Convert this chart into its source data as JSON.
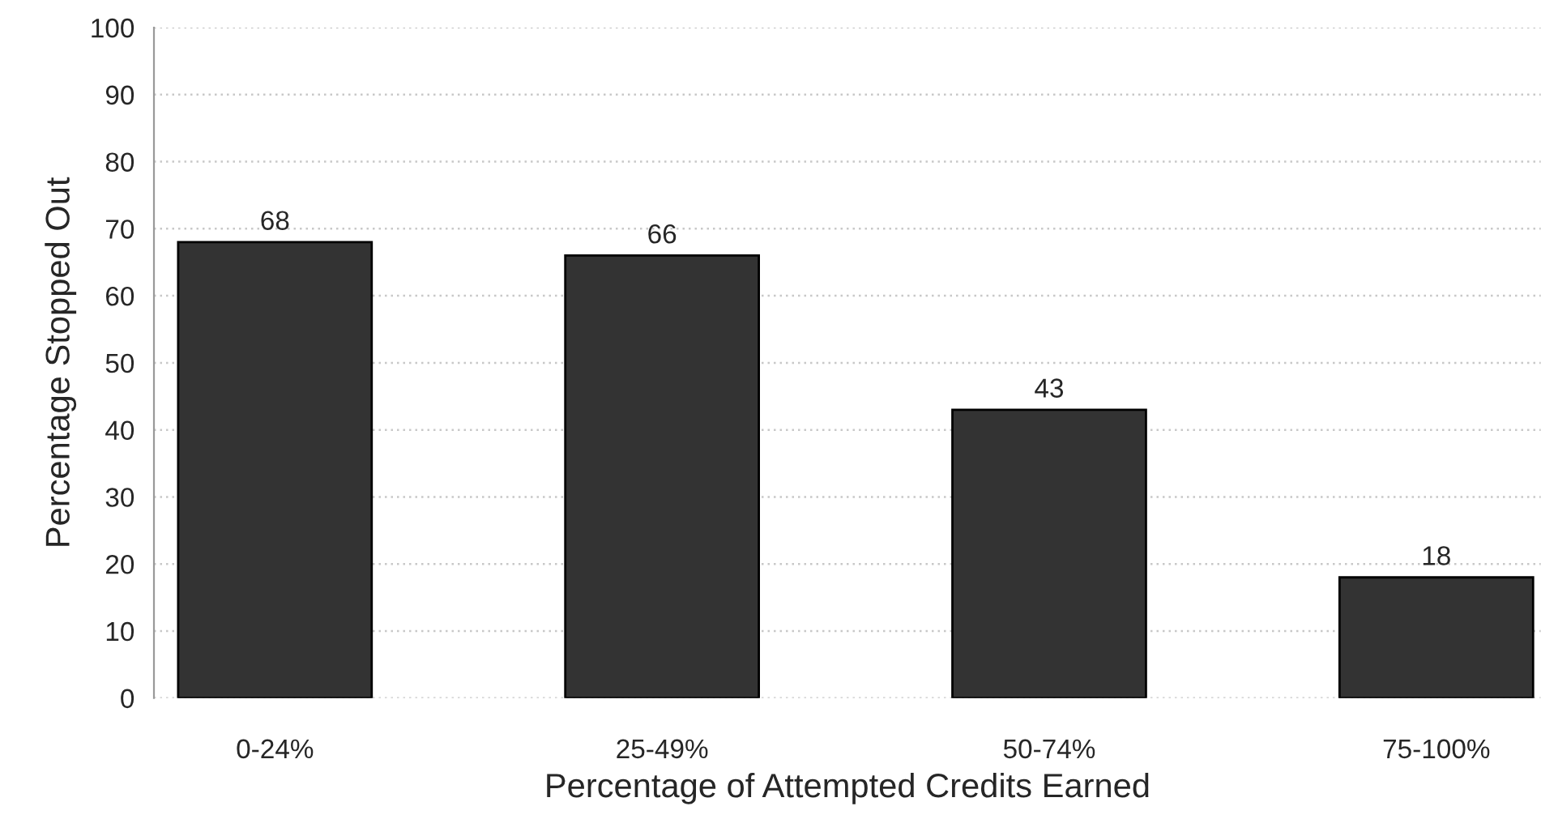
{
  "chart_data": {
    "type": "bar",
    "xlabel": "Percentage of Attempted Credits Earned",
    "ylabel": "Percentage Stopped Out",
    "categories": [
      "0-24%",
      "25-49%",
      "50-74%",
      "75-100%"
    ],
    "values": [
      68,
      66,
      43,
      18
    ],
    "color": "#333333",
    "ylim": [
      0,
      100
    ],
    "yticks": [
      0,
      10,
      20,
      30,
      40,
      50,
      60,
      70,
      80,
      90,
      100
    ],
    "grid": "y",
    "data_labels": true
  }
}
